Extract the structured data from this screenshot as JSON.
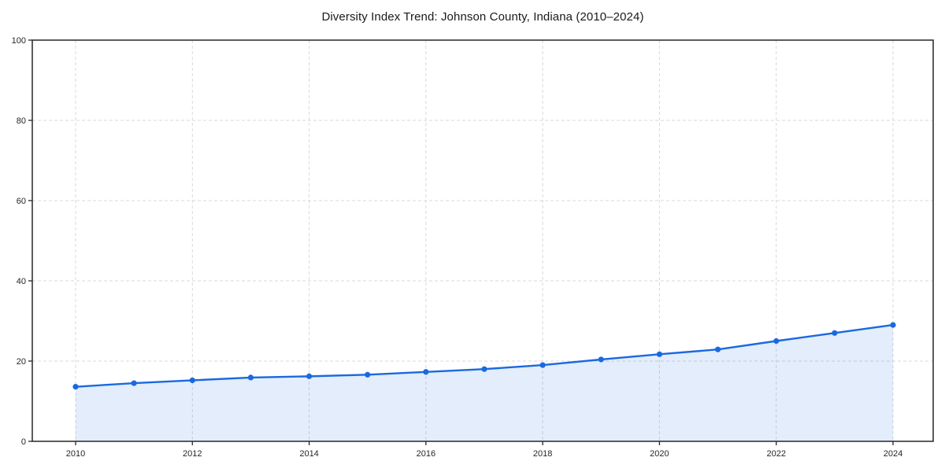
{
  "chart_data": {
    "type": "line",
    "title": "Diversity Index Trend: Johnson County, Indiana (2010–2024)",
    "x": [
      2010,
      2011,
      2012,
      2013,
      2014,
      2015,
      2016,
      2017,
      2018,
      2019,
      2020,
      2021,
      2022,
      2023,
      2024
    ],
    "values": [
      13.6,
      14.5,
      15.2,
      15.9,
      16.2,
      16.6,
      17.3,
      18.0,
      19.0,
      20.4,
      21.7,
      22.9,
      25.0,
      27.0,
      29.0
    ],
    "xlabel": "",
    "ylabel": "",
    "ylim": [
      0,
      100
    ],
    "yticks": [
      0,
      20,
      40,
      60,
      80,
      100
    ],
    "xticks": [
      2010,
      2012,
      2014,
      2016,
      2018,
      2020,
      2022,
      2024
    ],
    "grid": true,
    "grid_style": "dashed",
    "legend": false,
    "marker": "circle",
    "colors": {
      "line": "#1a69df",
      "fill": "#1a69df",
      "fill_opacity": 0.12,
      "grid": "#d9d9d9",
      "spine": "#262626",
      "tick_text": "#262626",
      "title_text": "#1a1a1a",
      "background": "#ffffff"
    }
  }
}
